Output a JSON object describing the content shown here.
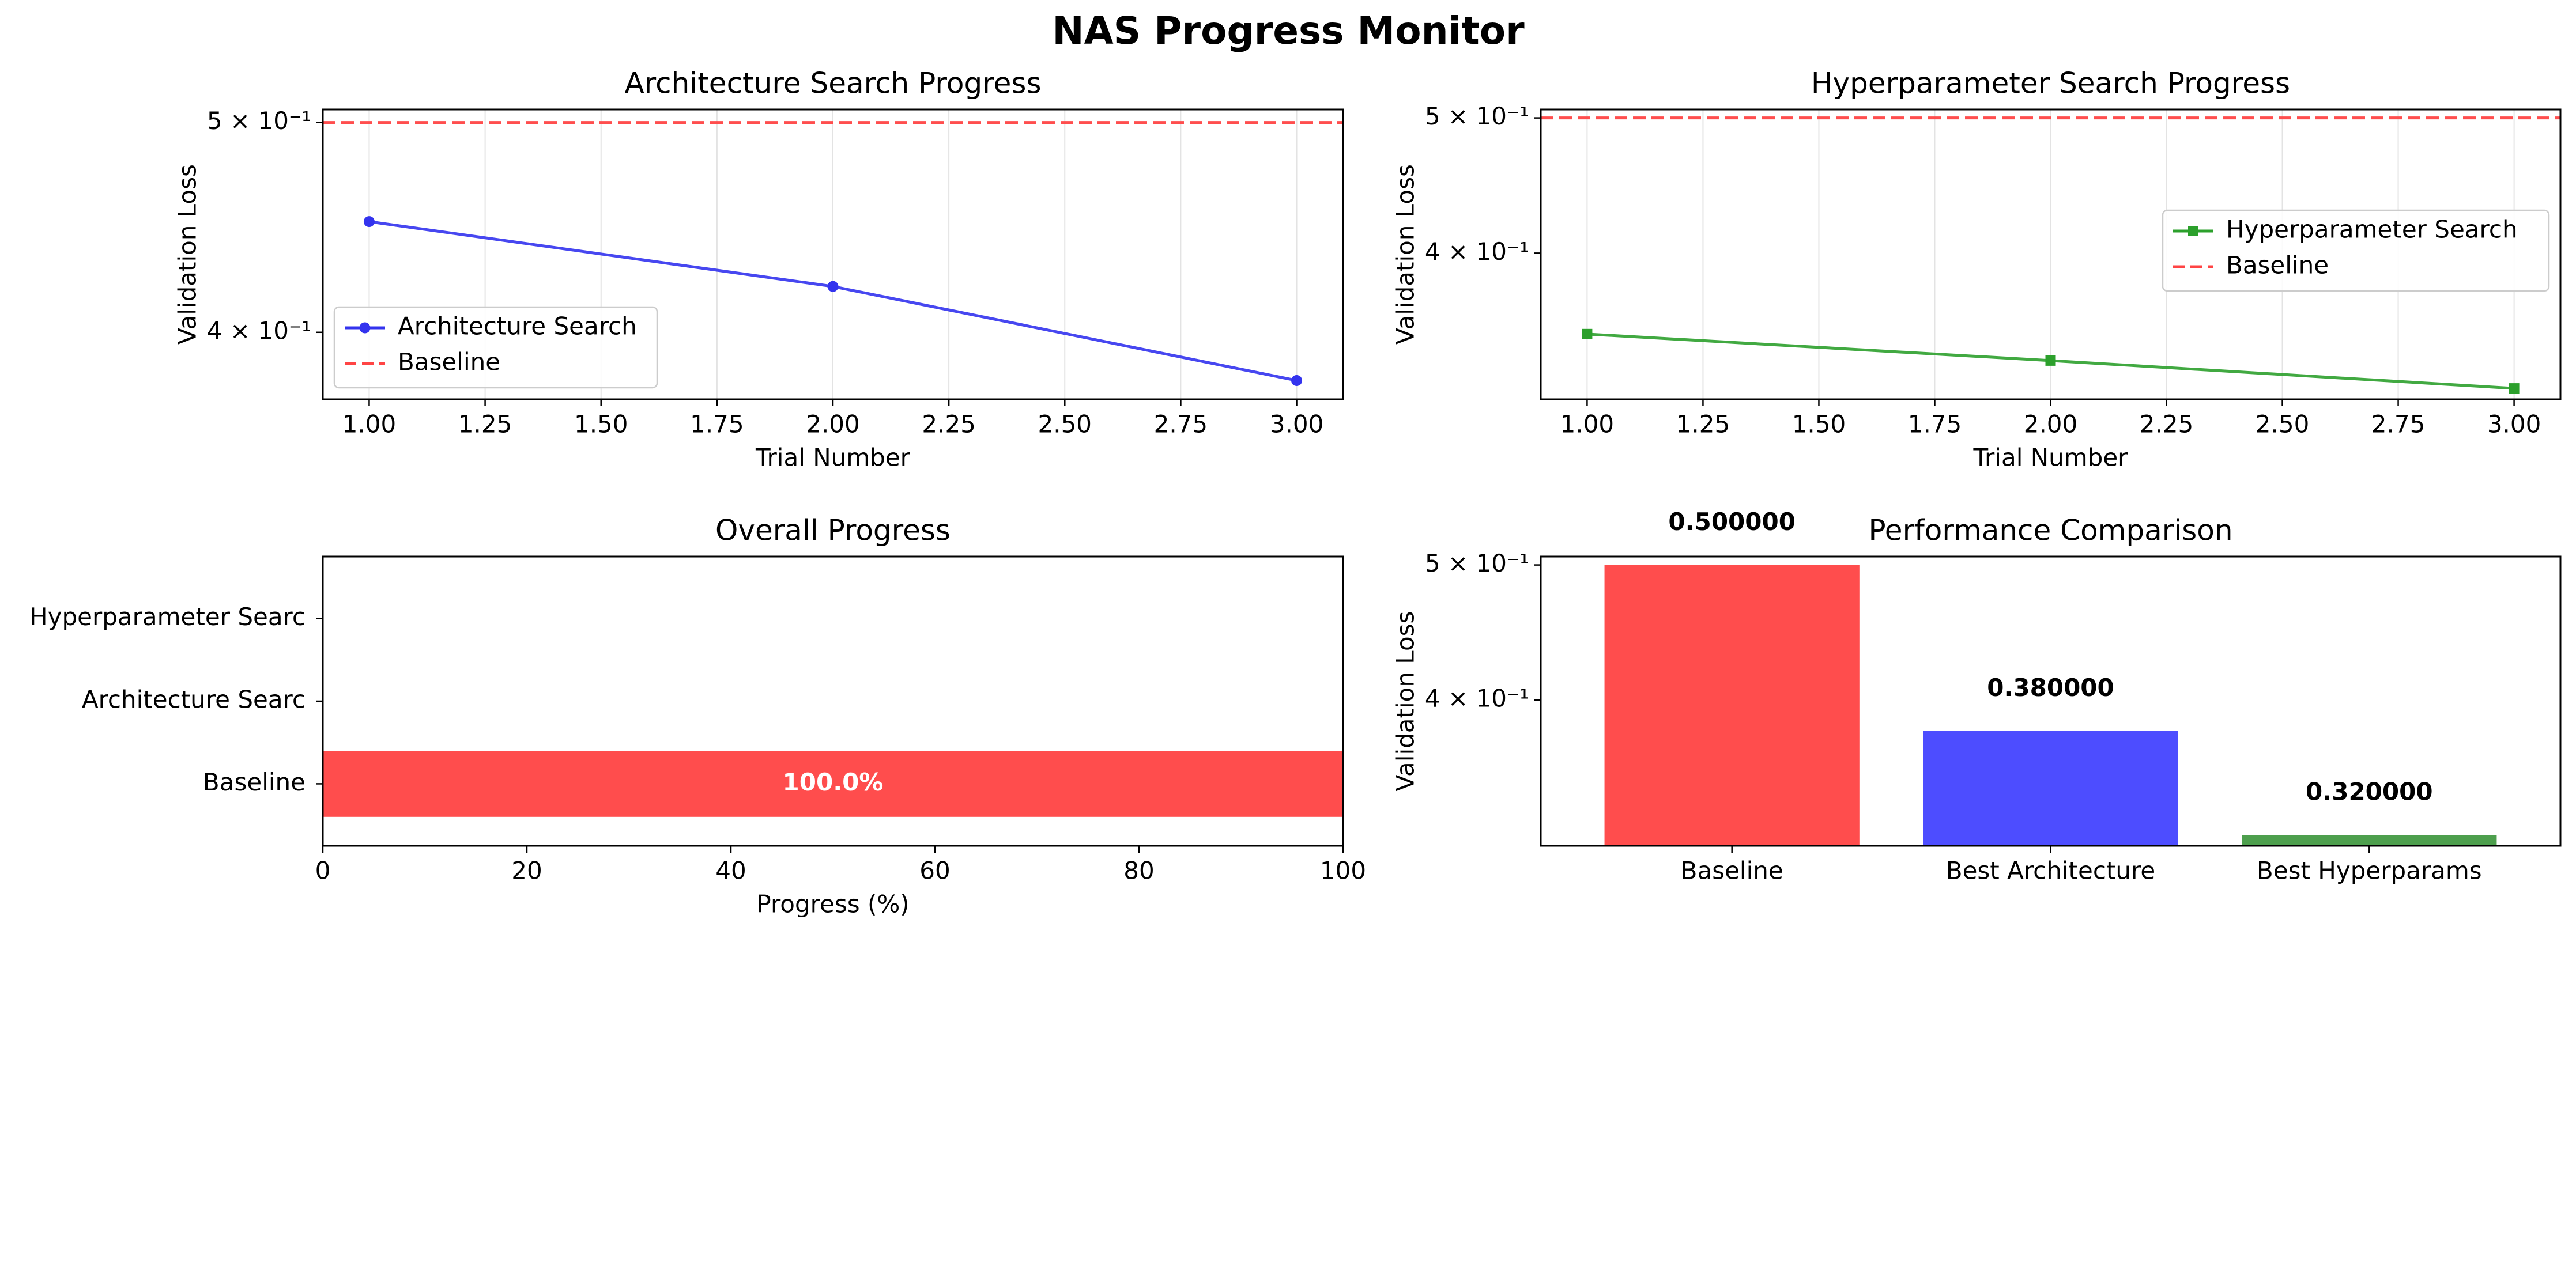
{
  "figure_title": "NAS Progress Monitor",
  "chart_data": [
    {
      "id": "arch",
      "type": "line",
      "title": "Architecture Search Progress",
      "xlabel": "Trial Number",
      "ylabel": "Validation Loss",
      "yscale": "log",
      "xlim": [
        0.9,
        3.1
      ],
      "ylim": [
        0.3725,
        0.507
      ],
      "x_ticks": [
        1.0,
        1.25,
        1.5,
        1.75,
        2.0,
        2.25,
        2.5,
        2.75,
        3.0
      ],
      "x_tick_labels": [
        "1.00",
        "1.25",
        "1.50",
        "1.75",
        "2.00",
        "2.25",
        "2.50",
        "2.75",
        "3.00"
      ],
      "y_ticks": [
        0.5,
        0.4
      ],
      "y_tick_labels": [
        "5 × 10⁻¹",
        "4 × 10⁻¹"
      ],
      "grid": "vertical",
      "legend_position": "lower-left",
      "series": [
        {
          "name": "Architecture Search",
          "x": [
            1,
            2,
            3
          ],
          "y": [
            0.45,
            0.42,
            0.38
          ],
          "color": "#3333ee",
          "marker": "circle"
        }
      ],
      "reference_line": {
        "name": "Baseline",
        "y": 0.5,
        "color": "#ff4444",
        "style": "dashed"
      }
    },
    {
      "id": "hyper",
      "type": "line",
      "title": "Hyperparameter Search Progress",
      "xlabel": "Trial Number",
      "ylabel": "Validation Loss",
      "yscale": "log",
      "xlim": [
        0.9,
        3.1
      ],
      "ylim": [
        0.3143,
        0.507
      ],
      "x_ticks": [
        1.0,
        1.25,
        1.5,
        1.75,
        2.0,
        2.25,
        2.5,
        2.75,
        3.0
      ],
      "x_tick_labels": [
        "1.00",
        "1.25",
        "1.50",
        "1.75",
        "2.00",
        "2.25",
        "2.50",
        "2.75",
        "3.00"
      ],
      "y_ticks": [
        0.5,
        0.4
      ],
      "y_tick_labels": [
        "5 × 10⁻¹",
        "4 × 10⁻¹"
      ],
      "grid": "vertical",
      "legend_position": "upper-right",
      "series": [
        {
          "name": "Hyperparameter Search",
          "x": [
            1,
            2,
            3
          ],
          "y": [
            0.35,
            0.335,
            0.32
          ],
          "color": "#2ca02c",
          "marker": "square"
        }
      ],
      "reference_line": {
        "name": "Baseline",
        "y": 0.5,
        "color": "#ff4444",
        "style": "dashed"
      }
    },
    {
      "id": "overall",
      "type": "bar",
      "orientation": "horizontal",
      "title": "Overall Progress",
      "xlabel": "Progress (%)",
      "xlim": [
        0,
        100
      ],
      "x_ticks": [
        0,
        20,
        40,
        60,
        80,
        100
      ],
      "x_tick_labels": [
        "0",
        "20",
        "40",
        "60",
        "80",
        "100"
      ],
      "categories": [
        "Baseline",
        "Architecture Search",
        "Hyperparameter Search"
      ],
      "category_labels": [
        "Baseline",
        "Architecture Searc",
        "Hyperparameter Searc"
      ],
      "values": [
        100,
        0,
        0
      ],
      "value_labels": [
        "100.0%",
        "",
        ""
      ],
      "colors": [
        "#ff4d4d",
        "#3333ee",
        "#2ca02c"
      ]
    },
    {
      "id": "perf",
      "type": "bar",
      "title": "Performance Comparison",
      "ylabel": "Validation Loss",
      "yscale": "log",
      "ylim": [
        0.3143,
        0.507
      ],
      "y_ticks": [
        0.5,
        0.4
      ],
      "y_tick_labels": [
        "5 × 10⁻¹",
        "4 × 10⁻¹"
      ],
      "categories": [
        "Baseline",
        "Best Architecture",
        "Best Hyperparams"
      ],
      "values": [
        0.5,
        0.38,
        0.32
      ],
      "value_labels": [
        "0.500000",
        "0.380000",
        "0.320000"
      ],
      "colors": [
        "#ff4d4d",
        "#4d4dff",
        "#4d9f4d"
      ]
    }
  ]
}
